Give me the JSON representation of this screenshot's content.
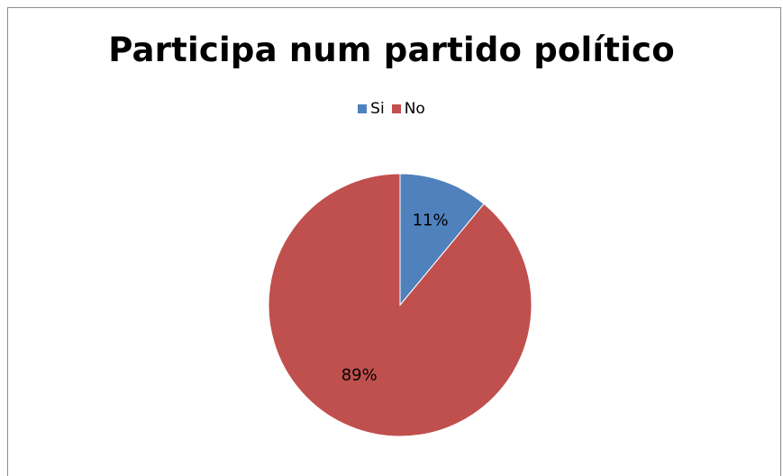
{
  "chart_data": {
    "type": "pie",
    "title": "Participa num partido político",
    "legend_position": "top",
    "categories": [
      "Si",
      "No"
    ],
    "values": [
      11,
      89
    ],
    "data_labels": [
      "11%",
      "89%"
    ],
    "colors": [
      "#4F81BD",
      "#C0504D"
    ],
    "start_angle_deg": 0,
    "direction": "clockwise"
  }
}
